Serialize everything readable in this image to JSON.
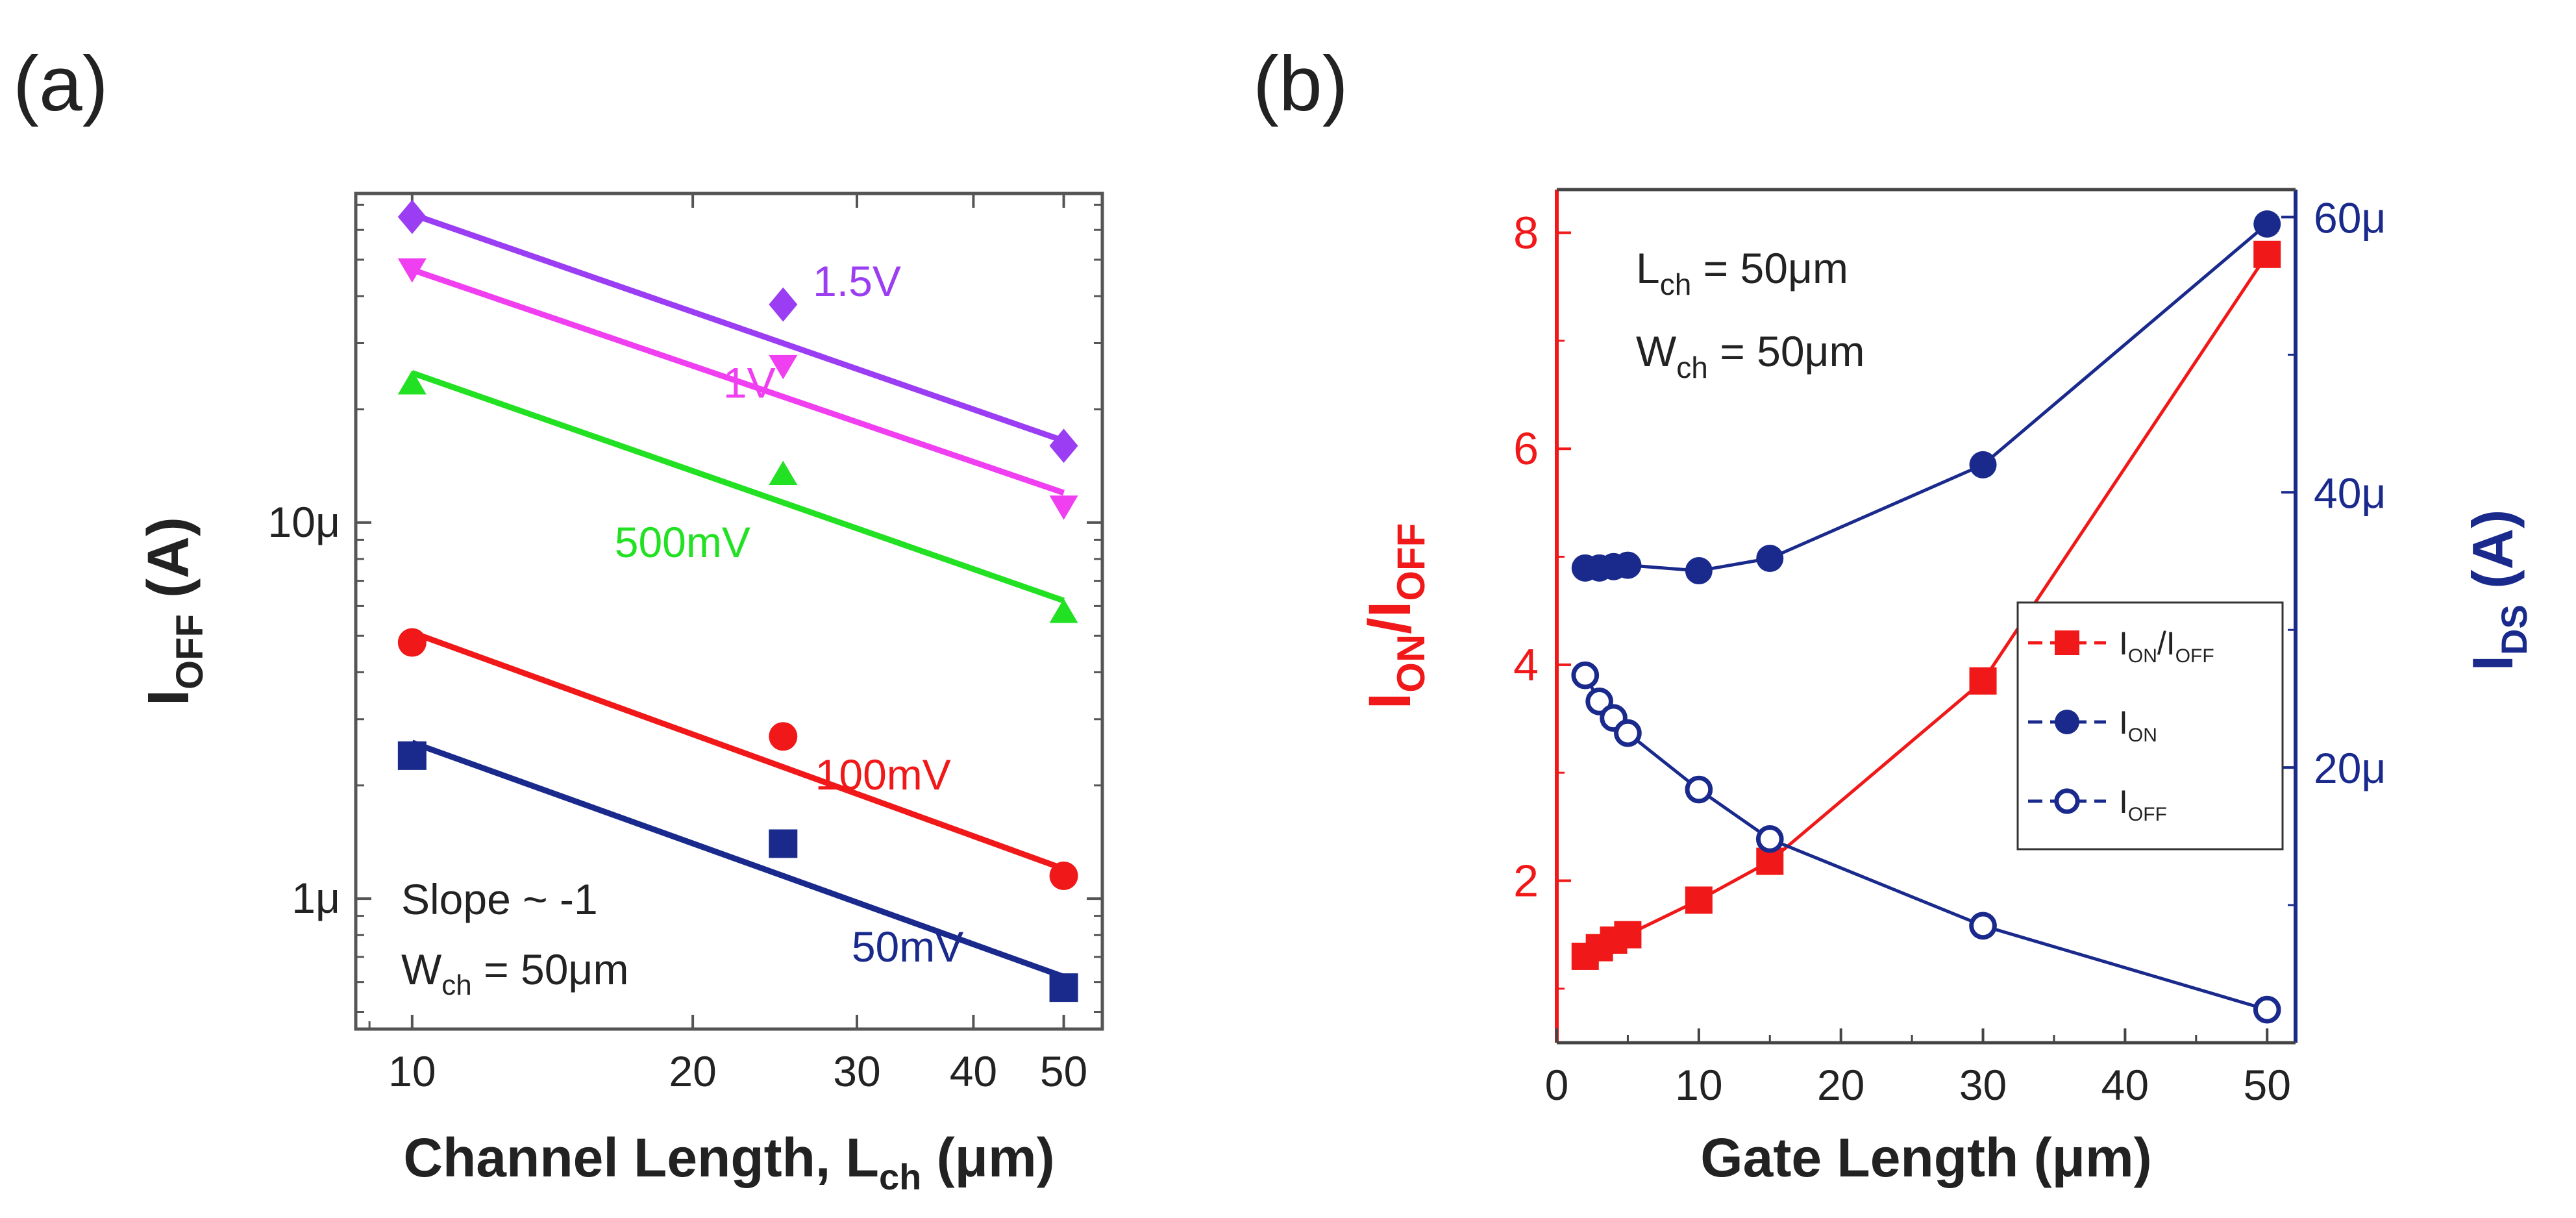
{
  "figure": {
    "panel_a_label": "(a)",
    "panel_b_label": "(b)"
  },
  "chart_data": [
    {
      "id": "a",
      "type": "scatter",
      "xscale": "log",
      "yscale": "log",
      "xlabel": {
        "main": "Channel Length, L",
        "sub": "ch",
        "unit": " (μm)"
      },
      "ylabel": {
        "main": "I",
        "sub": "OFF",
        "unit": " (A)"
      },
      "xlim": [
        8.7,
        55
      ],
      "ylim": [
        0.45,
        75
      ],
      "xticks": [
        {
          "value": 10,
          "label": "10"
        },
        {
          "value": 20,
          "label": "20"
        },
        {
          "value": 30,
          "label": "30"
        },
        {
          "value": 40,
          "label": "40"
        },
        {
          "value": 50,
          "label": "50"
        }
      ],
      "yticks": [
        {
          "value": 1,
          "label": "1μ"
        },
        {
          "value": 10,
          "label": "10μ"
        }
      ],
      "annotations": [
        {
          "text": "Slope ~ -1"
        },
        {
          "text": "W",
          "sub": "ch",
          "rest": " = 50μm"
        }
      ],
      "series": [
        {
          "name": "1.5V",
          "color": "#9b3df2",
          "marker": "diamond",
          "x": [
            10,
            25,
            50
          ],
          "y": [
            65,
            38,
            16
          ],
          "fit": [
            66,
            16.5
          ]
        },
        {
          "name": "1V",
          "color": "#f03ff0",
          "marker": "triangle-down",
          "x": [
            10,
            25,
            50
          ],
          "y": [
            47,
            26,
            11
          ],
          "fit": [
            47,
            12
          ]
        },
        {
          "name": "500mV",
          "color": "#22e022",
          "marker": "triangle-up",
          "x": [
            10,
            25,
            50
          ],
          "y": [
            23.5,
            13.5,
            5.8
          ],
          "fit": [
            25,
            6.2
          ]
        },
        {
          "name": "100mV",
          "color": "#f01818",
          "marker": "circle",
          "x": [
            10,
            25,
            50
          ],
          "y": [
            4.8,
            2.7,
            1.15
          ],
          "fit": [
            5.1,
            1.2
          ]
        },
        {
          "name": "50mV",
          "color": "#1a2a8c",
          "marker": "square",
          "x": [
            10,
            25,
            50
          ],
          "y": [
            2.4,
            1.4,
            0.58
          ],
          "fit": [
            2.6,
            0.62
          ]
        }
      ]
    },
    {
      "id": "b",
      "type": "line",
      "xlabel": "Gate Length (μm)",
      "ylabel": {
        "main": "I",
        "sub1": "ON",
        "mid": "/I",
        "sub2": "OFF"
      },
      "y2label": {
        "main": "I",
        "sub": "DS",
        "unit": " (A)"
      },
      "xlim": [
        0,
        52
      ],
      "ylim": [
        0.5,
        8.4
      ],
      "y2lim": [
        0,
        62
      ],
      "xticks": [
        0,
        10,
        20,
        30,
        40,
        50
      ],
      "yticks": [
        2,
        4,
        6,
        8
      ],
      "y2ticks": [
        {
          "value": 20,
          "label": "20μ"
        },
        {
          "value": 40,
          "label": "40μ"
        },
        {
          "value": 60,
          "label": "60μ"
        }
      ],
      "annotations": [
        {
          "text": "L",
          "sub": "ch",
          "rest": " = 50μm"
        },
        {
          "text": "W",
          "sub": "ch",
          "rest": " = 50μm"
        }
      ],
      "legend_position": "center-right",
      "series": [
        {
          "name": "I",
          "sub": "ON",
          "mid": "/I",
          "sub2": "OFF",
          "axis": "left",
          "color": "#f01818",
          "marker": "square-filled",
          "x": [
            2,
            3,
            4,
            5,
            10,
            15,
            30,
            50
          ],
          "y": [
            1.3,
            1.38,
            1.45,
            1.5,
            1.82,
            2.18,
            3.85,
            7.8
          ]
        },
        {
          "name": "I",
          "sub": "ON",
          "axis": "right",
          "color": "#1a2a8c",
          "marker": "circle-filled",
          "x": [
            2,
            3,
            4,
            5,
            10,
            15,
            30,
            50
          ],
          "y": [
            34.5,
            34.5,
            34.6,
            34.7,
            34.3,
            35.2,
            42,
            59.5
          ]
        },
        {
          "name": "I",
          "sub": "OFF",
          "axis": "right",
          "color": "#1a2a8c",
          "marker": "circle-open",
          "x": [
            2,
            3,
            4,
            5,
            10,
            15,
            30,
            50
          ],
          "y": [
            26.7,
            24.8,
            23.6,
            22.5,
            18.4,
            14.8,
            8.5,
            2.4
          ]
        }
      ]
    }
  ]
}
